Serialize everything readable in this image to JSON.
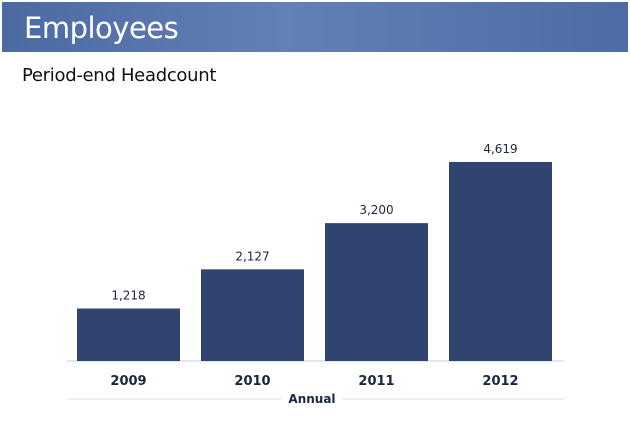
{
  "header": {
    "title": "Employees"
  },
  "chart_data": {
    "type": "bar",
    "title": "Employees",
    "subtitle": "Period-end Headcount",
    "xlabel": "Annual",
    "ylabel": "",
    "categories": [
      "2009",
      "2010",
      "2011",
      "2012"
    ],
    "values": [
      1218,
      2127,
      3200,
      4619
    ],
    "data_labels": [
      "1,218",
      "2,127",
      "3,200",
      "4,619"
    ],
    "ylim": [
      0,
      4619
    ],
    "grid": false,
    "bar_color": "#2f4570"
  }
}
